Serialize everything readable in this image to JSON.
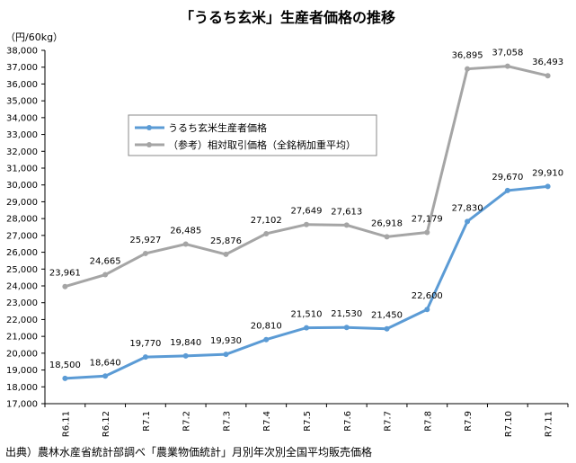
{
  "chart_data": {
    "type": "line",
    "title": "「うるち玄米」生産者価格の推移",
    "ylabel": "（円/60kg）",
    "xlabel": "",
    "ylim": [
      17000,
      38000
    ],
    "ystep": 1000,
    "grid": false,
    "legend_position": "top-left",
    "categories": [
      "R6.11",
      "R6.12",
      "R7.1",
      "R7.2",
      "R7.3",
      "R7.4",
      "R7.5",
      "R7.6",
      "R7.7",
      "R7.8",
      "R7.9",
      "R7.10",
      "R7.11"
    ],
    "series": [
      {
        "name": "うるち玄米生産者価格",
        "color": "#5b9bd5",
        "values": [
          18500,
          18640,
          19770,
          19840,
          19930,
          20810,
          21510,
          21530,
          21450,
          22600,
          27830,
          29670,
          29910
        ]
      },
      {
        "name": "（参考）相対取引価格（全銘柄加重平均）",
        "color": "#a5a5a5",
        "values": [
          23961,
          24665,
          25927,
          26485,
          25876,
          27102,
          27649,
          27613,
          26918,
          27179,
          36895,
          37058,
          36493
        ]
      }
    ],
    "source": "出典）農林水産省統計部調べ「農業物価統計」月別年次別全国平均販売価格"
  }
}
